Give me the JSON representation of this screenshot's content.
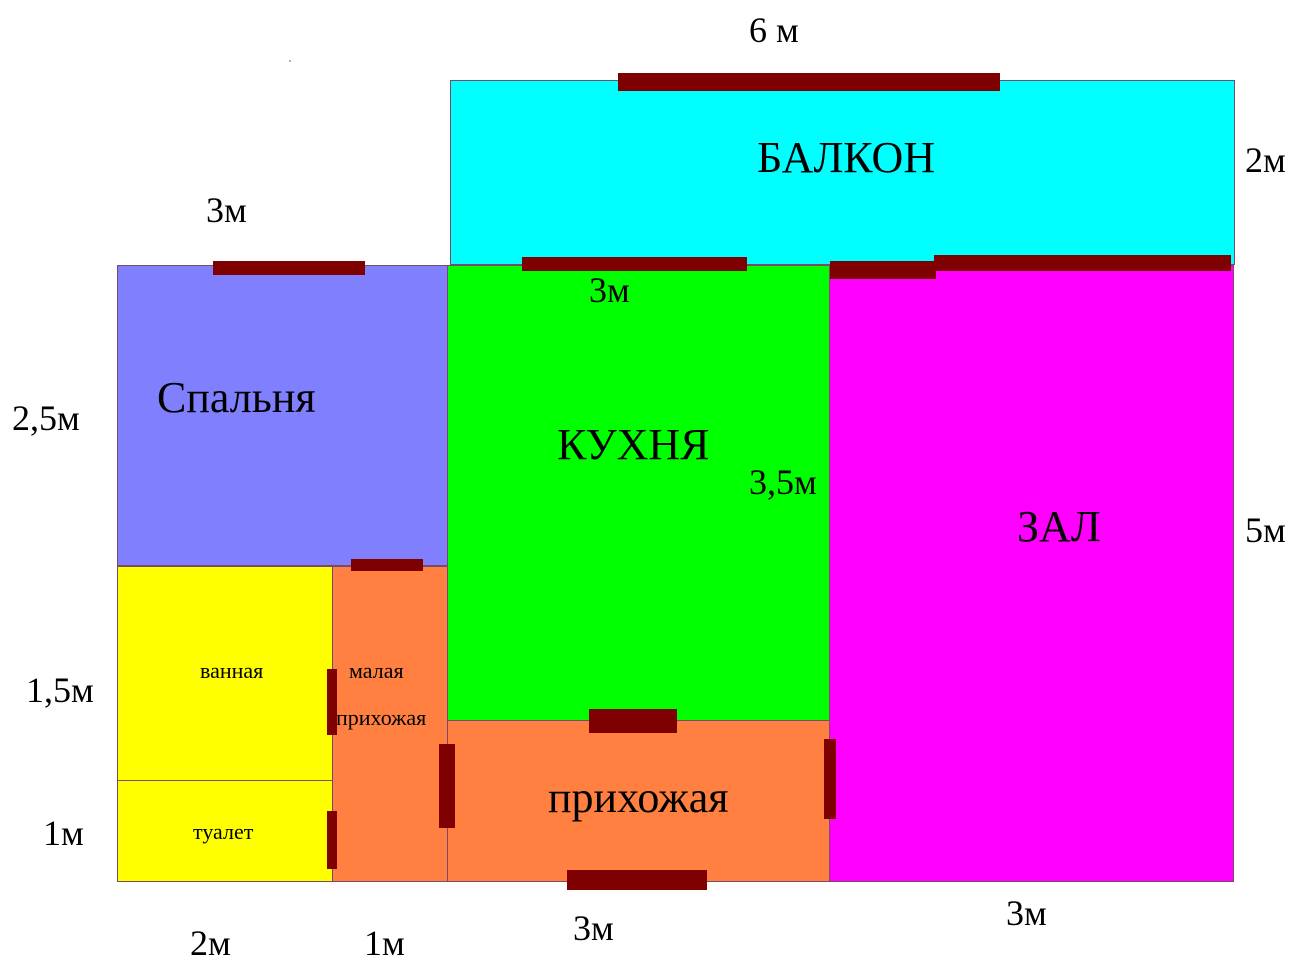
{
  "rooms": {
    "balcony": {
      "label": "БАЛКОН",
      "color": "#00ffff"
    },
    "bedroom": {
      "label": "Спальня",
      "color": "#8080ff"
    },
    "kitchen": {
      "label": "КУХНЯ",
      "color": "#00ff00"
    },
    "hall": {
      "label": "ЗАЛ",
      "color": "#ff00ff"
    },
    "bathroom": {
      "label": "ванная",
      "color": "#ffff00"
    },
    "toilet": {
      "label": "туалет",
      "color": "#ffff00"
    },
    "small_hallway": {
      "label_line1": "малая",
      "label_line2": "прихожая",
      "color": "#ff8040"
    },
    "hallway": {
      "label": "прихожая",
      "color": "#ff8040"
    }
  },
  "dimensions": {
    "balcony_width": "6 м",
    "balcony_depth": "2м",
    "bedroom_width": "3м",
    "bedroom_depth": "2,5м",
    "kitchen_width": "3м",
    "kitchen_depth": "3,5м",
    "hall_depth": "5м",
    "hall_width": "3м",
    "bathroom_depth": "1,5м",
    "toilet_depth": "1м",
    "bathroom_width": "2м",
    "small_hallway_width": "1м",
    "hallway_width": "3м"
  },
  "colors": {
    "door": "#7f0000",
    "outline": "#7a4a6a"
  }
}
